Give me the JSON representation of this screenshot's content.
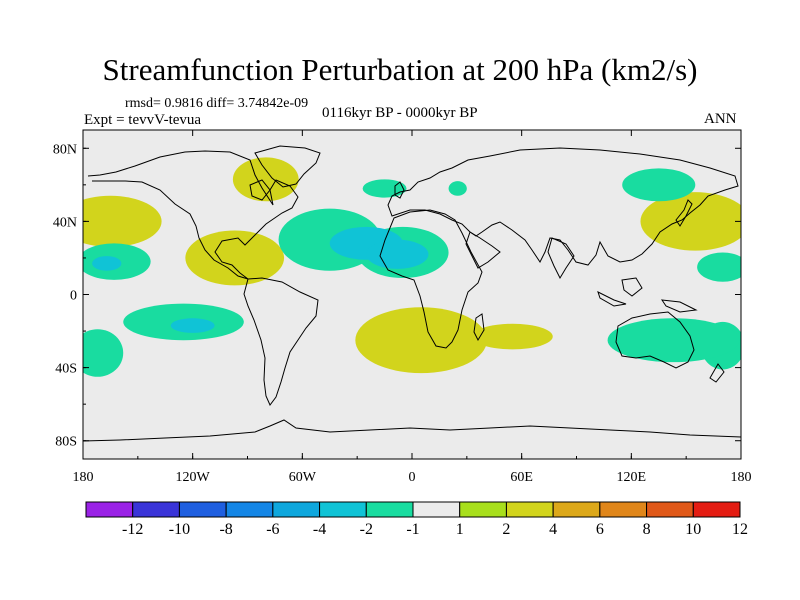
{
  "header": {
    "title": "Streamfunction Perturbation at 200 hPa (km2/s)",
    "rmsd_line": "rmsd= 0.9816 diff= 3.74842e-09",
    "experiment": "Expt = tevvV-tevua",
    "period": "0116kyr BP - 0000kyr BP",
    "season": "ANN"
  },
  "map": {
    "projection": "cylindrical-equidistant",
    "lon_range": [
      -180,
      180
    ],
    "lat_range": [
      -90,
      90
    ],
    "y_ticks": [
      {
        "label": "80N",
        "lat": 80
      },
      {
        "label": "40N",
        "lat": 40
      },
      {
        "label": "0",
        "lat": 0
      },
      {
        "label": "40S",
        "lat": -40
      },
      {
        "label": "80S",
        "lat": -80
      }
    ],
    "x_ticks": [
      {
        "label": "180",
        "lon": -180
      },
      {
        "label": "120W",
        "lon": -120
      },
      {
        "label": "60W",
        "lon": -60
      },
      {
        "label": "0",
        "lon": 0
      },
      {
        "label": "60E",
        "lon": 60
      },
      {
        "label": "120E",
        "lon": 120
      },
      {
        "label": "180",
        "lon": 180
      }
    ],
    "background_color": "#ebebeb",
    "anomalies": [
      {
        "name": "north-pacific-east",
        "lon": -165,
        "lat": 40,
        "rx": 28,
        "ry": 14,
        "value": 2
      },
      {
        "name": "north-pacific-east-core",
        "lon": -168,
        "lat": 39,
        "rx": 14,
        "ry": 7,
        "value": 3
      },
      {
        "name": "north-pacific-west",
        "lon": 155,
        "lat": 40,
        "rx": 30,
        "ry": 16,
        "value": 2
      },
      {
        "name": "north-pacific-west-core",
        "lon": 158,
        "lat": 38,
        "rx": 16,
        "ry": 8,
        "value": 3
      },
      {
        "name": "subtropical-pacific-east",
        "lon": -163,
        "lat": 18,
        "rx": 20,
        "ry": 10,
        "value": -2
      },
      {
        "name": "subtropical-pacific-east-core",
        "lon": -167,
        "lat": 17,
        "rx": 8,
        "ry": 4,
        "value": -3
      },
      {
        "name": "subtropical-pacific-west",
        "lon": 170,
        "lat": 15,
        "rx": 14,
        "ry": 8,
        "value": -2
      },
      {
        "name": "mexico-gulf",
        "lon": -97,
        "lat": 20,
        "rx": 27,
        "ry": 15,
        "value": 2
      },
      {
        "name": "mexico-gulf-core",
        "lon": -105,
        "lat": 18,
        "rx": 10,
        "ry": 5,
        "value": 3
      },
      {
        "name": "canada",
        "lon": -80,
        "lat": 63,
        "rx": 18,
        "ry": 12,
        "value": 2
      },
      {
        "name": "north-atlantic-ring",
        "lon": -45,
        "lat": 30,
        "rx": 28,
        "ry": 17,
        "value": -1.5
      },
      {
        "name": "north-africa-ring",
        "lon": -5,
        "lat": 23,
        "rx": 25,
        "ry": 14,
        "value": -1.5
      },
      {
        "name": "north-atlantic-core",
        "lon": -25,
        "lat": 28,
        "rx": 20,
        "ry": 9,
        "value": -2.5
      },
      {
        "name": "north-africa-core",
        "lon": -8,
        "lat": 22,
        "rx": 17,
        "ry": 8,
        "value": -2.5
      },
      {
        "name": "norway-sea",
        "lon": -15,
        "lat": 58,
        "rx": 12,
        "ry": 5,
        "value": -1.5
      },
      {
        "name": "russia-small",
        "lon": 25,
        "lat": 58,
        "rx": 5,
        "ry": 4,
        "value": -1.5
      },
      {
        "name": "siberia-east",
        "lon": 135,
        "lat": 60,
        "rx": 20,
        "ry": 9,
        "value": -1.5
      },
      {
        "name": "south-pacific-central",
        "lon": -125,
        "lat": -15,
        "rx": 33,
        "ry": 10,
        "value": -2
      },
      {
        "name": "south-pacific-central-core",
        "lon": -120,
        "lat": -17,
        "rx": 12,
        "ry": 4,
        "value": -3
      },
      {
        "name": "south-pacific-west",
        "lon": -172,
        "lat": -32,
        "rx": 14,
        "ry": 13,
        "value": -2
      },
      {
        "name": "south-pacific-east",
        "lon": 170,
        "lat": -28,
        "rx": 12,
        "ry": 13,
        "value": -2
      },
      {
        "name": "south-atlantic",
        "lon": 5,
        "lat": -25,
        "rx": 36,
        "ry": 18,
        "value": 2
      },
      {
        "name": "south-indian",
        "lon": 55,
        "lat": -23,
        "rx": 22,
        "ry": 7,
        "value": 2
      },
      {
        "name": "south-atlantic-core",
        "lon": 8,
        "lat": -25,
        "rx": 8,
        "ry": 4,
        "value": 3
      },
      {
        "name": "australia-region",
        "lon": 143,
        "lat": -25,
        "rx": 36,
        "ry": 12,
        "value": -1.5
      }
    ]
  },
  "colorbar": {
    "levels": [
      "-12",
      "-10",
      "-8",
      "-6",
      "-4",
      "-2",
      "-1",
      "1",
      "2",
      "4",
      "6",
      "8",
      "10",
      "12"
    ],
    "colors": [
      "#9a22e6",
      "#3a34d8",
      "#1f5fe0",
      "#1486e6",
      "#0ea7dd",
      "#10c3d6",
      "#19dca0",
      "#ebebeb",
      "#a8df1c",
      "#d2d41c",
      "#dca81a",
      "#e0861a",
      "#e05818",
      "#e41c12"
    ]
  }
}
